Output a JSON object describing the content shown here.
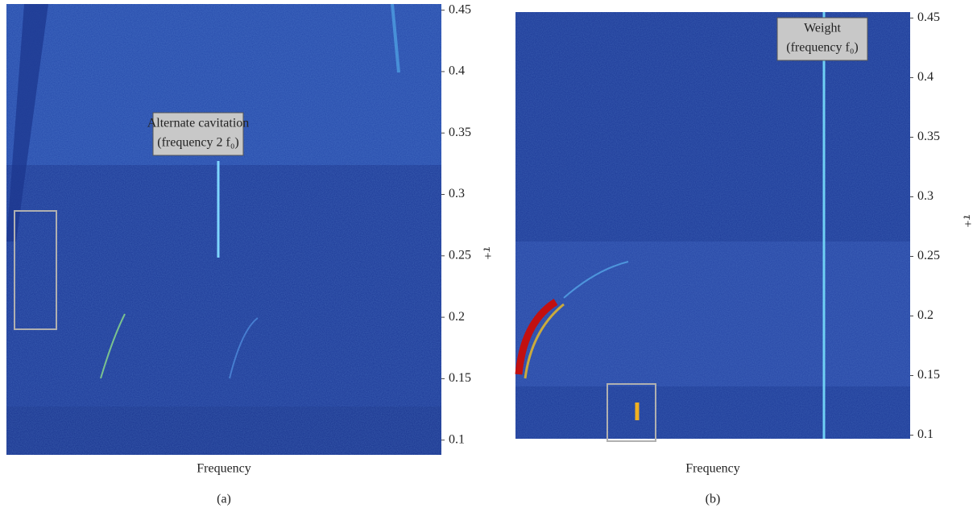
{
  "chart_data": [
    {
      "type": "heatmap",
      "panel_label": "(a)",
      "xlabel": "Frequency",
      "ylabel": "τ+",
      "ylim": [
        0.088,
        0.455
      ],
      "yticks": [
        0.1,
        0.15,
        0.2,
        0.25,
        0.3,
        0.35,
        0.4,
        0.45
      ],
      "annotation": [
        "Alternate cavitation",
        "(frequency 2 f₀)"
      ]
    },
    {
      "type": "heatmap",
      "panel_label": "(b)",
      "xlabel": "Frequency",
      "ylabel": "τ+",
      "ylim": [
        0.097,
        0.455
      ],
      "yticks": [
        0.1,
        0.15,
        0.2,
        0.25,
        0.3,
        0.35,
        0.4,
        0.45
      ],
      "annotation": [
        "Weight",
        "(frequency f₀)"
      ]
    }
  ]
}
